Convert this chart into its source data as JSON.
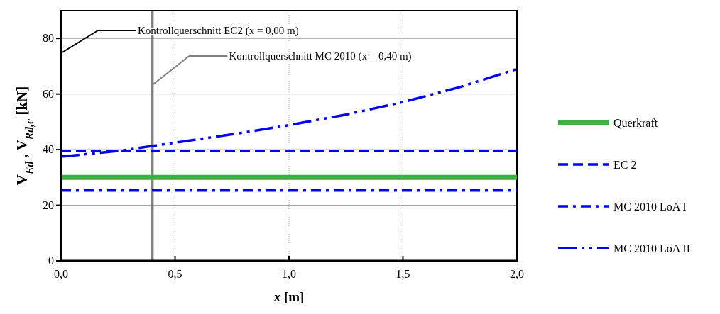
{
  "chart_data": {
    "type": "line",
    "xlabel": "x [m]",
    "ylabel": "V$_{Ed}$ , V$_{Rd,c}$ [kN]",
    "xlim": [
      0,
      2
    ],
    "xticks": [
      {
        "value": 0,
        "label": "0,0"
      },
      {
        "value": 0.5,
        "label": "0,5"
      },
      {
        "value": 1,
        "label": "1,0"
      },
      {
        "value": 1.5,
        "label": "1,5"
      },
      {
        "value": 2,
        "label": "2,0"
      }
    ],
    "ylim": [
      0,
      90
    ],
    "yticks": [
      0,
      20,
      40,
      60,
      80
    ],
    "grid": true,
    "legend": "right",
    "series": [
      {
        "name": "Querkraft",
        "color": "#3cb043",
        "line_style": "solid",
        "x": [
          0,
          2
        ],
        "values": [
          30,
          30
        ]
      },
      {
        "name": "EC 2",
        "color": "#0000ff",
        "line_style": "dashed",
        "x": [
          0,
          2
        ],
        "values": [
          39.5,
          39.5
        ]
      },
      {
        "name": "MC 2010 LoA I",
        "color": "#0000ff",
        "line_style": "dashdot",
        "x": [
          0,
          2
        ],
        "values": [
          25.3,
          25.3
        ]
      },
      {
        "name": "MC 2010 LoA II",
        "color": "#0000ff",
        "line_style": "longdashdotdot",
        "x": [
          0,
          0.25,
          0.5,
          0.75,
          1,
          1.25,
          1.5,
          1.75,
          2
        ],
        "values": [
          37.5,
          39.5,
          42.5,
          45.5,
          48.8,
          52.6,
          57.1,
          62.5,
          69
        ]
      }
    ],
    "ref_lines": [
      {
        "axis": "x",
        "value": 0,
        "label": "Kontrollquerschnitt EC2 (x = 0,00 m)",
        "color": "#000000"
      },
      {
        "axis": "x",
        "value": 0.4,
        "label": "Kontrollquerschnitt MC 2010 (x = 0,40 m)",
        "color": "#808080"
      }
    ]
  }
}
